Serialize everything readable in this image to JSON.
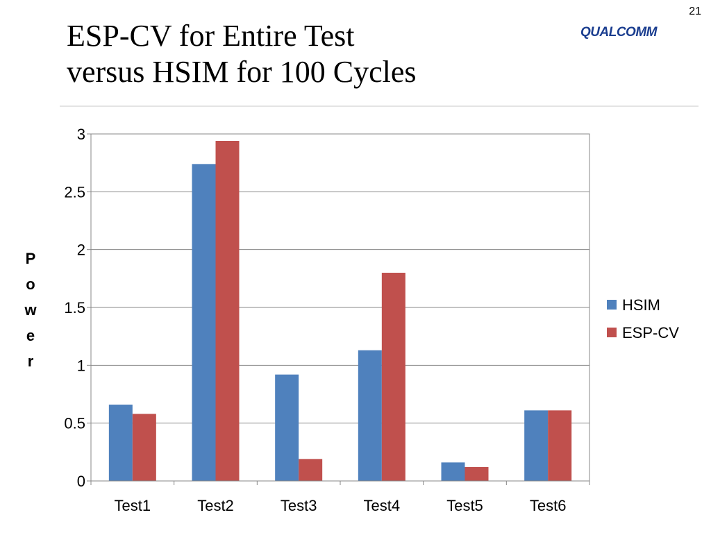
{
  "slide": {
    "number": "21",
    "title_lines": [
      "ESP-CV for Entire Test",
      "versus HSIM for 100 Cycles"
    ],
    "logo_text": "QUALCOMM"
  },
  "colors": {
    "hsim": "#4f81bd",
    "esp_cv": "#c0504d",
    "grid": "#878787",
    "axis": "#878787"
  },
  "chart_data": {
    "type": "bar",
    "title": "",
    "xlabel": "",
    "ylabel": "Power",
    "categories": [
      "Test1",
      "Test2",
      "Test3",
      "Test4",
      "Test5",
      "Test6"
    ],
    "series": [
      {
        "name": "HSIM",
        "values": [
          0.66,
          2.74,
          0.92,
          1.13,
          0.16,
          0.61
        ]
      },
      {
        "name": "ESP-CV",
        "values": [
          0.58,
          2.94,
          0.19,
          1.8,
          0.12,
          0.61
        ]
      }
    ],
    "ylim": [
      0,
      3
    ],
    "yticks": [
      "0",
      "0.5",
      "1",
      "1.5",
      "2",
      "2.5",
      "3"
    ],
    "grid": true,
    "legend_position": "right"
  }
}
